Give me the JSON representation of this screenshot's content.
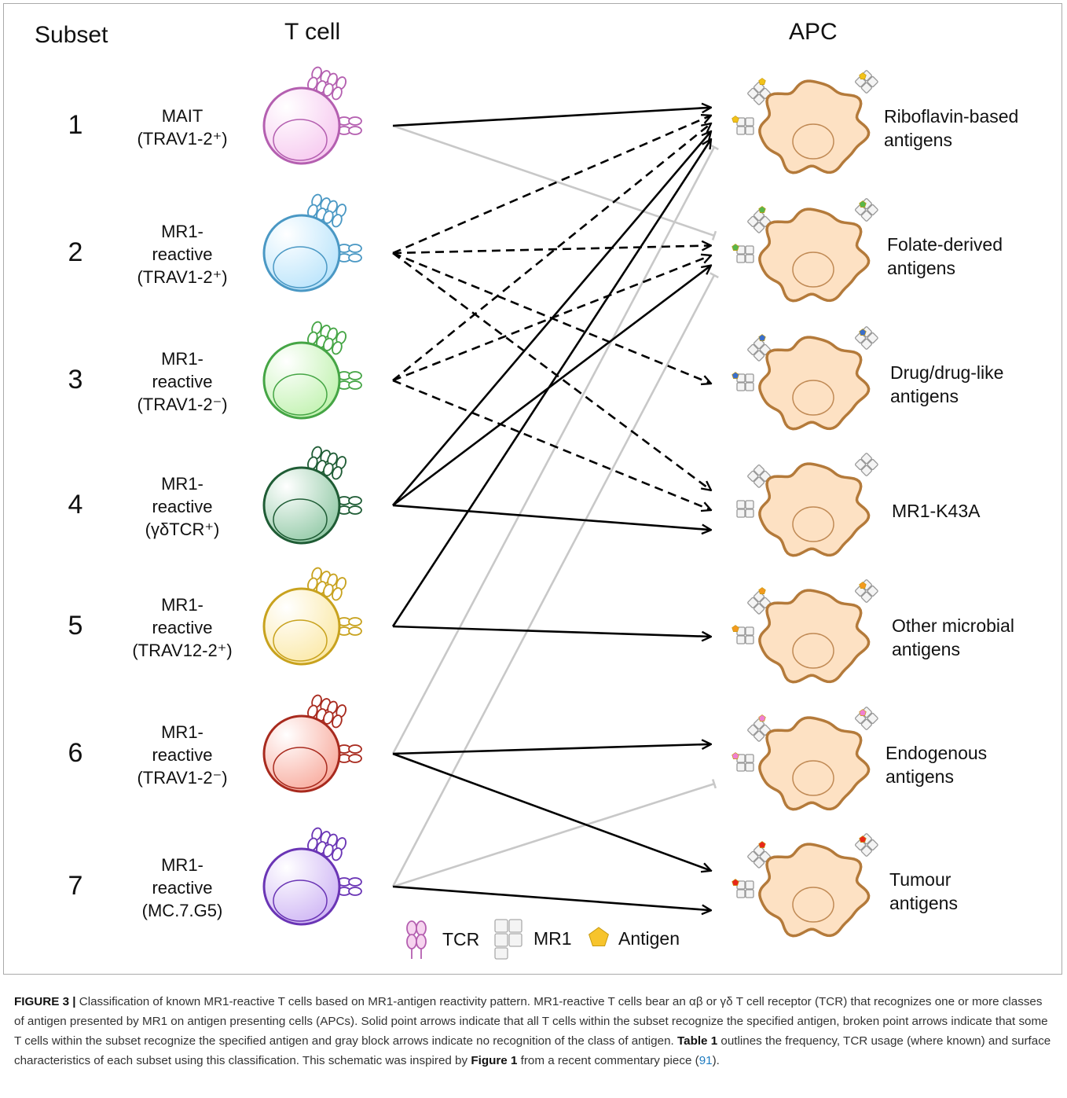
{
  "headers": {
    "subset": "Subset",
    "tcell": "T cell",
    "apc": "APC"
  },
  "subsets": [
    {
      "num": "1",
      "lines": [
        "MAIT",
        "(TRAV1-2⁺)"
      ],
      "color": "#b45fb0",
      "fill": "#f6c7ef"
    },
    {
      "num": "2",
      "lines": [
        "MR1-",
        "reactive",
        "(TRAV1-2⁺)"
      ],
      "color": "#4a98c4",
      "fill": "#b7e3fb"
    },
    {
      "num": "3",
      "lines": [
        "MR1-",
        "reactive",
        "(TRAV1-2⁻)"
      ],
      "color": "#45a545",
      "fill": "#bff2ad"
    },
    {
      "num": "4",
      "lines": [
        "MR1-",
        "reactive",
        "(γδTCR⁺)"
      ],
      "color": "#1f5c35",
      "fill": "#8fc8a4"
    },
    {
      "num": "5",
      "lines": [
        "MR1-",
        "reactive",
        "(TRAV12-2⁺)"
      ],
      "color": "#c8a21e",
      "fill": "#fbe8a4"
    },
    {
      "num": "6",
      "lines": [
        "MR1-",
        "reactive",
        "(TRAV1-2⁻)"
      ],
      "color": "#a82a1e",
      "fill": "#f8a89a"
    },
    {
      "num": "7",
      "lines": [
        "MR1-",
        "reactive",
        "(MC.7.G5)"
      ],
      "color": "#6a35b5",
      "fill": "#cdb3f4"
    }
  ],
  "antigens": [
    {
      "lines": [
        "Riboflavin-based",
        "antigens"
      ],
      "color": "#f2c21a"
    },
    {
      "lines": [
        "Folate-derived",
        "antigens"
      ],
      "color": "#59b64a"
    },
    {
      "lines": [
        "Drug/drug-like",
        "antigens"
      ],
      "color": "#3a6fcb"
    },
    {
      "lines": [
        "MR1-K43A"
      ],
      "color": ""
    },
    {
      "lines": [
        "Other microbial",
        "antigens"
      ],
      "color": "#f39a1f"
    },
    {
      "lines": [
        "Endogenous",
        "antigens"
      ],
      "color": "#f07fd2"
    },
    {
      "lines": [
        "Tumour",
        "antigens"
      ],
      "color": "#e8261a"
    }
  ],
  "connections": [
    {
      "from": "1",
      "to": "Riboflavin-based antigens",
      "type": "solid"
    },
    {
      "from": "1",
      "to": "Folate-derived antigens",
      "type": "block"
    },
    {
      "from": "2",
      "to": "Riboflavin-based antigens",
      "type": "dashed"
    },
    {
      "from": "2",
      "to": "Folate-derived antigens",
      "type": "dashed"
    },
    {
      "from": "2",
      "to": "Drug/drug-like antigens",
      "type": "dashed"
    },
    {
      "from": "2",
      "to": "MR1-K43A",
      "type": "dashed"
    },
    {
      "from": "3",
      "to": "Riboflavin-based antigens",
      "type": "dashed"
    },
    {
      "from": "3",
      "to": "Folate-derived antigens",
      "type": "dashed"
    },
    {
      "from": "3",
      "to": "MR1-K43A",
      "type": "dashed"
    },
    {
      "from": "4",
      "to": "Riboflavin-based antigens",
      "type": "solid"
    },
    {
      "from": "4",
      "to": "Folate-derived antigens",
      "type": "solid"
    },
    {
      "from": "4",
      "to": "MR1-K43A",
      "type": "solid"
    },
    {
      "from": "5",
      "to": "Riboflavin-based antigens",
      "type": "solid"
    },
    {
      "from": "5",
      "to": "Other microbial antigens",
      "type": "solid"
    },
    {
      "from": "6",
      "to": "Riboflavin-based antigens",
      "type": "block"
    },
    {
      "from": "6",
      "to": "Endogenous antigens",
      "type": "solid"
    },
    {
      "from": "6",
      "to": "Tumour antigens",
      "type": "solid"
    },
    {
      "from": "7",
      "to": "Folate-derived antigens",
      "type": "block"
    },
    {
      "from": "7",
      "to": "Endogenous antigens",
      "type": "block"
    },
    {
      "from": "7",
      "to": "Tumour antigens",
      "type": "solid"
    }
  ],
  "legend": {
    "tcr": "TCR",
    "mr1": "MR1",
    "antigen": "Antigen",
    "antigen_color": "#f7c42c"
  },
  "caption": {
    "label": "FIGURE 3 |",
    "text1": " Classification of known MR1-reactive T cells based on MR1-antigen reactivity pattern. MR1-reactive T cells bear an αβ or γδ T cell receptor (TCR) that recognizes one or more classes of antigen presented by MR1 on antigen presenting cells (APCs). Solid point arrows indicate that all T cells within the subset recognize the specified antigen, broken point arrows indicate that some T cells within the subset recognize the specified antigen and gray block arrows indicate no recognition of the class of antigen. ",
    "table_ref": "Table 1",
    "text2": " outlines the frequency, TCR usage (where known) and surface characteristics of each subset using this classification. This schematic was inspired by ",
    "figure_ref": "Figure 1",
    "text3": " from a recent commentary piece (",
    "cite": "91",
    "text4": ")."
  }
}
